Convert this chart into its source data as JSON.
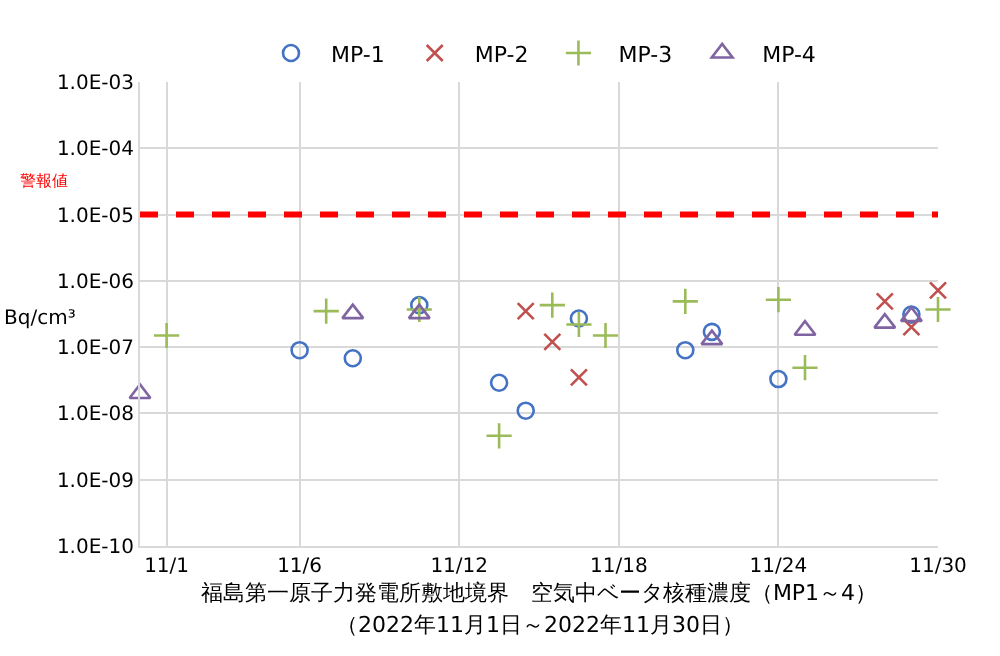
{
  "chart_data": {
    "type": "scatter",
    "xlabel": "福島第一原子力発電所敷地境界　空気中ベータ核種濃度（MP1～4）",
    "annotations": [
      "（2022年11月1日～2022年11月30日）"
    ],
    "ylabel": "Bq/cm³",
    "series": [
      {
        "name": "MP-1",
        "color": "#4472c4",
        "marker": "circle",
        "x": [
          "--11-06",
          "--11-08",
          "--11-10T12:00",
          "--11-13T12:00",
          "--11-14T12:00",
          "--11-16T12:00",
          "--11-20T12:00",
          "--11-21T12:00",
          "--11-24",
          "--11-29"
        ],
        "values": [
          9e-08,
          6.8e-08,
          4.3e-07,
          2.9e-08,
          1.1e-08,
          2.7e-07,
          9e-08,
          1.7e-07,
          3.3e-08,
          3.1e-07
        ]
      },
      {
        "name": "MP-2",
        "color": "#c0504d",
        "marker": "x",
        "x": [
          "--11-14T12:00",
          "--11-15T12:00",
          "--11-16T12:00",
          "--11-28",
          "--11-29",
          "--11-30"
        ],
        "values": [
          3.5e-07,
          1.2e-07,
          3.5e-08,
          4.9e-07,
          2e-07,
          7.2e-07
        ]
      },
      {
        "name": "MP-3",
        "color": "#9bbb59",
        "marker": "cross",
        "x": [
          "--11-01",
          "--11-07",
          "--11-10T12:00",
          "--11-13T12:00",
          "--11-15T12:00",
          "--11-16T12:00",
          "--11-17T12:00",
          "--11-20T12:00",
          "--11-24",
          "--11-25",
          "--11-30"
        ],
        "values": [
          1.5e-07,
          3.5e-07,
          3.7e-07,
          4.6e-09,
          4.3e-07,
          2.2e-07,
          1.5e-07,
          4.9e-07,
          5.2e-07,
          4.9e-08,
          3.7e-07
        ]
      },
      {
        "name": "MP-4",
        "color": "#8064a2",
        "marker": "triangle",
        "x": [
          "--10-31",
          "--11-08",
          "--11-10T12:00",
          "--11-21T12:00",
          "--11-25",
          "--11-28",
          "--11-29"
        ],
        "values": [
          2e-08,
          3.2e-07,
          3.2e-07,
          1.3e-07,
          1.8e-07,
          2.3e-07,
          2.9e-07
        ]
      }
    ],
    "xlim": [
      "--10-31",
      "--11-30"
    ],
    "xticks": [
      {
        "value": "--11-01",
        "label": "11/1"
      },
      {
        "value": "--11-06",
        "label": "11/6"
      },
      {
        "value": "--11-12",
        "label": "11/12"
      },
      {
        "value": "--11-18",
        "label": "11/18"
      },
      {
        "value": "--11-24",
        "label": "11/24"
      },
      {
        "value": "--11-30",
        "label": "11/30"
      }
    ],
    "log": "y",
    "ylim": [
      1e-10,
      0.001
    ],
    "yticks": [
      {
        "value": 1e-10,
        "label": "1.0E-10"
      },
      {
        "value": 1e-09,
        "label": "1.0E-09"
      },
      {
        "value": 1e-08,
        "label": "1.0E-08"
      },
      {
        "value": 1e-07,
        "label": "1.0E-07"
      },
      {
        "value": 1e-06,
        "label": "1.0E-06"
      },
      {
        "value": 1e-05,
        "label": "1.0E-05"
      },
      {
        "value": 0.0001,
        "label": "1.0E-04"
      },
      {
        "value": 0.001,
        "label": "1.0E-03"
      }
    ],
    "ref_lines": [
      {
        "axis": "y",
        "value": 1e-05,
        "label": "警報値",
        "color": "#ff0000",
        "line_style": "dashed"
      }
    ],
    "grid": true,
    "legend": "top"
  }
}
